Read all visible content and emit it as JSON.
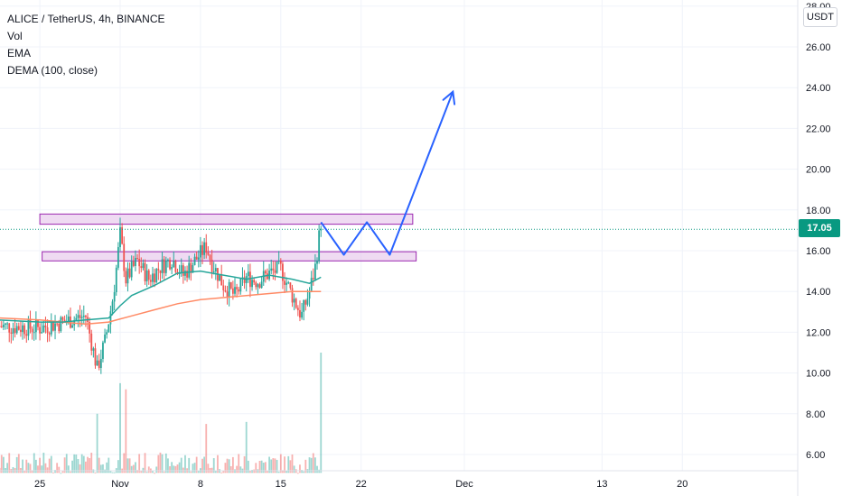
{
  "legend": {
    "symbol": "ALICE / TetherUS, 4h, BINANCE",
    "vol": "Vol",
    "ema": "EMA",
    "dema": "DEMA (100, close)"
  },
  "currency": "USDT",
  "last_price": "17.05",
  "colors": {
    "up": "#26a69a",
    "down": "#ef5350",
    "ema": "#26a69a",
    "dema": "#ff8a65",
    "zone_fill": "#e1bee7",
    "zone_border": "#9c27b0",
    "projection": "#2962ff",
    "price_line": "#089981",
    "grid": "#f0f3fa"
  },
  "chart_data": {
    "type": "candlestick",
    "y_axis": {
      "ticks": [
        "6.00",
        "8.00",
        "10.00",
        "12.00",
        "14.00",
        "16.00",
        "18.00",
        "20.00",
        "22.00",
        "24.00",
        "26.00",
        "28.00"
      ],
      "tick_values": [
        6,
        8,
        10,
        12,
        14,
        16,
        18,
        20,
        22,
        24,
        26,
        28
      ],
      "range": [
        5.1,
        28.5
      ]
    },
    "x_axis": {
      "ticks": [
        "25",
        "Nov",
        "8",
        "15",
        "22",
        "Dec",
        "13",
        "20"
      ],
      "tick_days": [
        -7,
        0,
        7,
        14,
        21,
        30,
        42,
        49
      ],
      "day_range": [
        -10.5,
        57
      ]
    },
    "last_price": 17.05,
    "candles_day_range": [
      -10.5,
      17.5
    ],
    "close_path": [
      [
        -10.5,
        12.3
      ],
      [
        -7,
        12.2
      ],
      [
        -5,
        12.5
      ],
      [
        -3,
        12.8
      ],
      [
        -2,
        10.2
      ],
      [
        -1.3,
        11.6
      ],
      [
        -0.6,
        13.8
      ],
      [
        0,
        16.8
      ],
      [
        0.5,
        14.6
      ],
      [
        1.5,
        15.5
      ],
      [
        2.5,
        14.6
      ],
      [
        3.5,
        15.2
      ],
      [
        4.5,
        15.6
      ],
      [
        5.5,
        14.8
      ],
      [
        6.5,
        15.5
      ],
      [
        7.5,
        16.2
      ],
      [
        8,
        15.4
      ],
      [
        9,
        14.3
      ],
      [
        10,
        13.8
      ],
      [
        11,
        14.7
      ],
      [
        12,
        14.5
      ],
      [
        13,
        14.9
      ],
      [
        14,
        15.1
      ],
      [
        15,
        13.8
      ],
      [
        15.8,
        12.8
      ],
      [
        16.5,
        14.0
      ],
      [
        17,
        15.2
      ],
      [
        17.5,
        17.4
      ]
    ],
    "volume": {
      "baseline_price": 5.1,
      "pixel_scale_note": "",
      "spikes": [
        [
          -2,
          8.0
        ],
        [
          0,
          9.5
        ],
        [
          0.5,
          9.2
        ],
        [
          7.5,
          7.5
        ],
        [
          11,
          7.6
        ],
        [
          17.5,
          11.0
        ]
      ]
    },
    "ema_series": [
      [
        -10.5,
        12.6
      ],
      [
        -7,
        12.5
      ],
      [
        -5,
        12.5
      ],
      [
        -3,
        12.6
      ],
      [
        -1,
        12.7
      ],
      [
        0,
        13.3
      ],
      [
        1,
        13.8
      ],
      [
        3,
        14.3
      ],
      [
        5,
        14.9
      ],
      [
        7,
        15.0
      ],
      [
        9,
        14.8
      ],
      [
        11,
        14.6
      ],
      [
        13,
        14.8
      ],
      [
        15,
        14.6
      ],
      [
        16.5,
        14.4
      ],
      [
        17.5,
        14.7
      ]
    ],
    "dema_series": [
      [
        -10.5,
        12.7
      ],
      [
        -7,
        12.6
      ],
      [
        -5,
        12.5
      ],
      [
        -3,
        12.4
      ],
      [
        -1,
        12.5
      ],
      [
        1,
        12.8
      ],
      [
        3,
        13.1
      ],
      [
        5,
        13.4
      ],
      [
        7,
        13.6
      ],
      [
        9,
        13.7
      ],
      [
        11,
        13.8
      ],
      [
        13,
        13.9
      ],
      [
        15,
        14.0
      ],
      [
        17.5,
        14.0
      ]
    ],
    "zones": [
      {
        "x0": -7,
        "x1": 25.5,
        "y0": 17.3,
        "y1": 17.8
      },
      {
        "x0": -6.8,
        "x1": 25.8,
        "y0": 15.5,
        "y1": 15.95
      }
    ],
    "projection_path": [
      [
        17.5,
        17.4
      ],
      [
        19.5,
        15.8
      ],
      [
        21.5,
        17.4
      ],
      [
        23.5,
        15.8
      ],
      [
        29,
        23.8
      ]
    ]
  }
}
